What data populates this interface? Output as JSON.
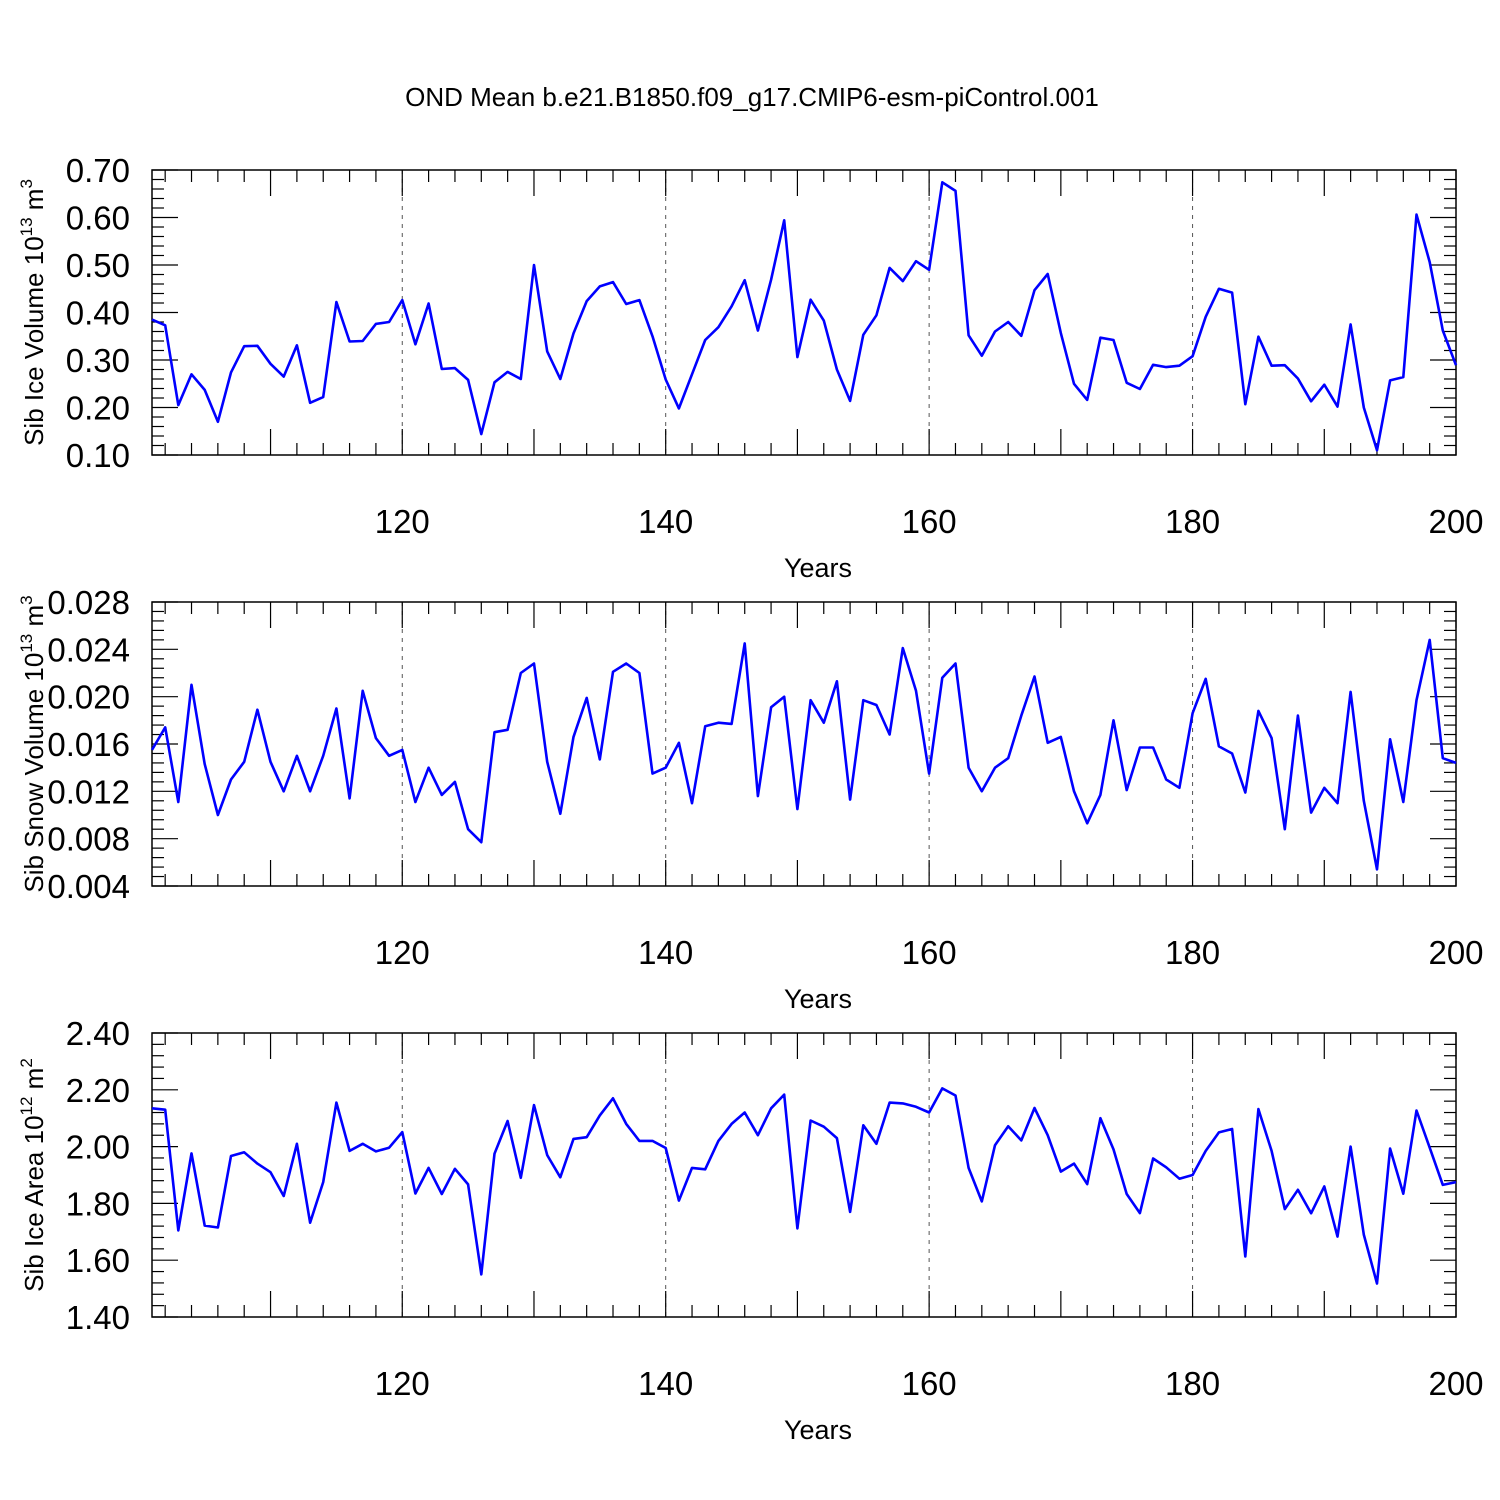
{
  "chart_data": {
    "type": "line",
    "title": "OND Mean b.e21.B1850.f09_g17.CMIP6-esm-piControl.001",
    "x": [
      101,
      102,
      103,
      104,
      105,
      106,
      107,
      108,
      109,
      110,
      111,
      112,
      113,
      114,
      115,
      116,
      117,
      118,
      119,
      120,
      121,
      122,
      123,
      124,
      125,
      126,
      127,
      128,
      129,
      130,
      131,
      132,
      133,
      134,
      135,
      136,
      137,
      138,
      139,
      140,
      141,
      142,
      143,
      144,
      145,
      146,
      147,
      148,
      149,
      150,
      151,
      152,
      153,
      154,
      155,
      156,
      157,
      158,
      159,
      160,
      161,
      162,
      163,
      164,
      165,
      166,
      167,
      168,
      169,
      170,
      171,
      172,
      173,
      174,
      175,
      176,
      177,
      178,
      179,
      180,
      181,
      182,
      183,
      184,
      185,
      186,
      187,
      188,
      189,
      190,
      191,
      192,
      193,
      194,
      195,
      196,
      197,
      198,
      199,
      200
    ],
    "xlim": [
      101,
      200
    ],
    "xticks": [
      120,
      140,
      160,
      180,
      200
    ],
    "xtick_labels": [
      "120",
      "140",
      "160",
      "180",
      "200"
    ],
    "grid": "dashed vertical at major x ticks",
    "panels": [
      {
        "ylabel": "Sib Ice Volume",
        "unit_power": "13",
        "unit_base": "10",
        "unit_sup": "3",
        "unit_m": "m",
        "xlabel": "Years",
        "ylim": [
          0.1,
          0.7
        ],
        "yticks": [
          "0.10",
          "0.20",
          "0.30",
          "0.40",
          "0.50",
          "0.60",
          "0.70"
        ],
        "values": [
          0.385,
          0.373,
          0.205,
          0.27,
          0.237,
          0.17,
          0.274,
          0.329,
          0.33,
          0.292,
          0.265,
          0.331,
          0.21,
          0.222,
          0.422,
          0.339,
          0.34,
          0.376,
          0.38,
          0.426,
          0.333,
          0.419,
          0.281,
          0.283,
          0.258,
          0.144,
          0.253,
          0.275,
          0.26,
          0.5,
          0.318,
          0.26,
          0.356,
          0.424,
          0.455,
          0.464,
          0.418,
          0.426,
          0.35,
          0.259,
          0.198,
          0.27,
          0.342,
          0.369,
          0.413,
          0.468,
          0.362,
          0.469,
          0.594,
          0.306,
          0.427,
          0.383,
          0.28,
          0.214,
          0.353,
          0.394,
          0.494,
          0.466,
          0.508,
          0.49,
          0.674,
          0.656,
          0.352,
          0.309,
          0.36,
          0.38,
          0.351,
          0.447,
          0.481,
          0.357,
          0.25,
          0.216,
          0.347,
          0.342,
          0.252,
          0.239,
          0.29,
          0.285,
          0.288,
          0.308,
          0.391,
          0.45,
          0.442,
          0.207,
          0.349,
          0.288,
          0.289,
          0.261,
          0.213,
          0.248,
          0.202,
          0.375,
          0.2,
          0.11,
          0.257,
          0.264,
          0.606,
          0.506,
          0.362,
          0.289
        ]
      },
      {
        "ylabel": "Sib Snow Volume",
        "unit_power": "13",
        "unit_base": "10",
        "unit_sup": "3",
        "unit_m": "m",
        "xlabel": "Years",
        "ylim": [
          0.004,
          0.028
        ],
        "yticks": [
          "0.004",
          "0.008",
          "0.012",
          "0.016",
          "0.020",
          "0.024",
          "0.028"
        ],
        "values": [
          0.0155,
          0.0174,
          0.0111,
          0.021,
          0.0143,
          0.01,
          0.013,
          0.0145,
          0.0189,
          0.0145,
          0.012,
          0.015,
          0.012,
          0.015,
          0.019,
          0.0114,
          0.0205,
          0.0165,
          0.015,
          0.0155,
          0.0111,
          0.014,
          0.0117,
          0.0128,
          0.0088,
          0.0077,
          0.017,
          0.0172,
          0.022,
          0.0228,
          0.0145,
          0.0101,
          0.0166,
          0.0199,
          0.0147,
          0.0221,
          0.0228,
          0.022,
          0.0135,
          0.014,
          0.0161,
          0.011,
          0.0175,
          0.0178,
          0.0177,
          0.0245,
          0.0116,
          0.0191,
          0.02,
          0.0105,
          0.0197,
          0.0178,
          0.0213,
          0.0113,
          0.0197,
          0.0193,
          0.0168,
          0.0241,
          0.0205,
          0.0135,
          0.0216,
          0.0228,
          0.014,
          0.012,
          0.014,
          0.0148,
          0.0184,
          0.0217,
          0.0161,
          0.0166,
          0.012,
          0.0093,
          0.0117,
          0.018,
          0.0121,
          0.0157,
          0.0157,
          0.013,
          0.0123,
          0.0186,
          0.0215,
          0.0158,
          0.0152,
          0.0119,
          0.0188,
          0.0165,
          0.0088,
          0.0184,
          0.0102,
          0.0123,
          0.011,
          0.0204,
          0.0112,
          0.0054,
          0.0164,
          0.0111,
          0.0197,
          0.0248,
          0.0148,
          0.0144
        ]
      },
      {
        "ylabel": "Sib Ice Area",
        "unit_power": "12",
        "unit_base": "10",
        "unit_sup": "2",
        "unit_m": "m",
        "xlabel": "Years",
        "ylim": [
          1.4,
          2.4
        ],
        "yticks": [
          "1.40",
          "1.60",
          "1.80",
          "2.00",
          "2.20",
          "2.40"
        ],
        "values": [
          2.135,
          2.13,
          1.705,
          1.976,
          1.722,
          1.715,
          1.967,
          1.98,
          1.94,
          1.91,
          1.826,
          2.01,
          1.732,
          1.875,
          2.155,
          1.985,
          2.01,
          1.983,
          1.996,
          2.051,
          1.835,
          1.925,
          1.833,
          1.922,
          1.867,
          1.55,
          1.975,
          2.09,
          1.89,
          2.146,
          1.97,
          1.892,
          2.027,
          2.033,
          2.11,
          2.17,
          2.08,
          2.02,
          2.02,
          1.995,
          1.81,
          1.925,
          1.92,
          2.02,
          2.08,
          2.12,
          2.04,
          2.135,
          2.183,
          1.712,
          2.092,
          2.07,
          2.03,
          1.77,
          2.075,
          2.01,
          2.155,
          2.152,
          2.14,
          2.12,
          2.205,
          2.18,
          1.925,
          1.807,
          2.005,
          2.072,
          2.022,
          2.136,
          2.04,
          1.912,
          1.94,
          1.868,
          2.1,
          1.99,
          1.833,
          1.766,
          1.958,
          1.927,
          1.887,
          1.9,
          1.985,
          2.05,
          2.062,
          1.613,
          2.132,
          1.985,
          1.78,
          1.848,
          1.765,
          1.86,
          1.683,
          2.0,
          1.69,
          1.518,
          1.993,
          1.834,
          2.127,
          1.996,
          1.865,
          1.875
        ]
      }
    ]
  }
}
